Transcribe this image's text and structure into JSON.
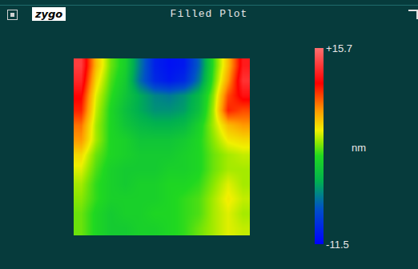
{
  "logo": "zygo",
  "chart_data": {
    "type": "heatmap",
    "title": "Filled Plot",
    "tick_labels": false,
    "z": [
      [
        13.5,
        6,
        2,
        0,
        -5,
        -9.5,
        -10.5,
        -10,
        -6,
        1,
        6,
        12
      ],
      [
        12.5,
        5,
        1.5,
        -0.5,
        -5.5,
        -9,
        -10,
        -9,
        -5,
        1.5,
        7,
        13
      ],
      [
        11,
        4,
        1,
        -1,
        -3,
        -4.5,
        -5,
        -4,
        -2,
        2.5,
        9,
        11.5
      ],
      [
        10,
        3.5,
        0.5,
        -1.5,
        -3,
        -4,
        -4,
        -3.5,
        -1.5,
        3,
        10,
        9
      ],
      [
        8,
        3,
        0.5,
        -1,
        -2,
        -2.5,
        -2.5,
        -2,
        0,
        3,
        6,
        7
      ],
      [
        7,
        3,
        0.5,
        0,
        -1,
        -1,
        -1,
        -0.5,
        0.5,
        2.5,
        4.5,
        5
      ],
      [
        5,
        2,
        0.5,
        0,
        -0.5,
        -0.5,
        -0.5,
        0,
        0.5,
        2,
        3,
        3.5
      ],
      [
        4,
        1.5,
        0,
        -0.5,
        -0.5,
        -0.5,
        0,
        0,
        0.5,
        2,
        3,
        3
      ],
      [
        3,
        1,
        0,
        -0.5,
        0,
        0,
        0.5,
        0.5,
        1,
        2.5,
        4,
        3
      ],
      [
        2.5,
        1,
        0,
        0,
        0,
        0,
        0.5,
        1,
        1.5,
        3,
        4.5,
        3.5
      ],
      [
        2,
        0.5,
        -0.5,
        0,
        0,
        0.5,
        0.5,
        1,
        1.5,
        3,
        4,
        3
      ],
      [
        2,
        0.5,
        -0.5,
        -0.5,
        0,
        0,
        0.5,
        1,
        2,
        3,
        4,
        3.5
      ]
    ],
    "colorbar": {
      "label": "nm",
      "range": [
        -11.5,
        15.7
      ],
      "ticks": [
        {
          "value": 15.7,
          "label": "+15.7"
        },
        -11.5
      ]
    }
  }
}
